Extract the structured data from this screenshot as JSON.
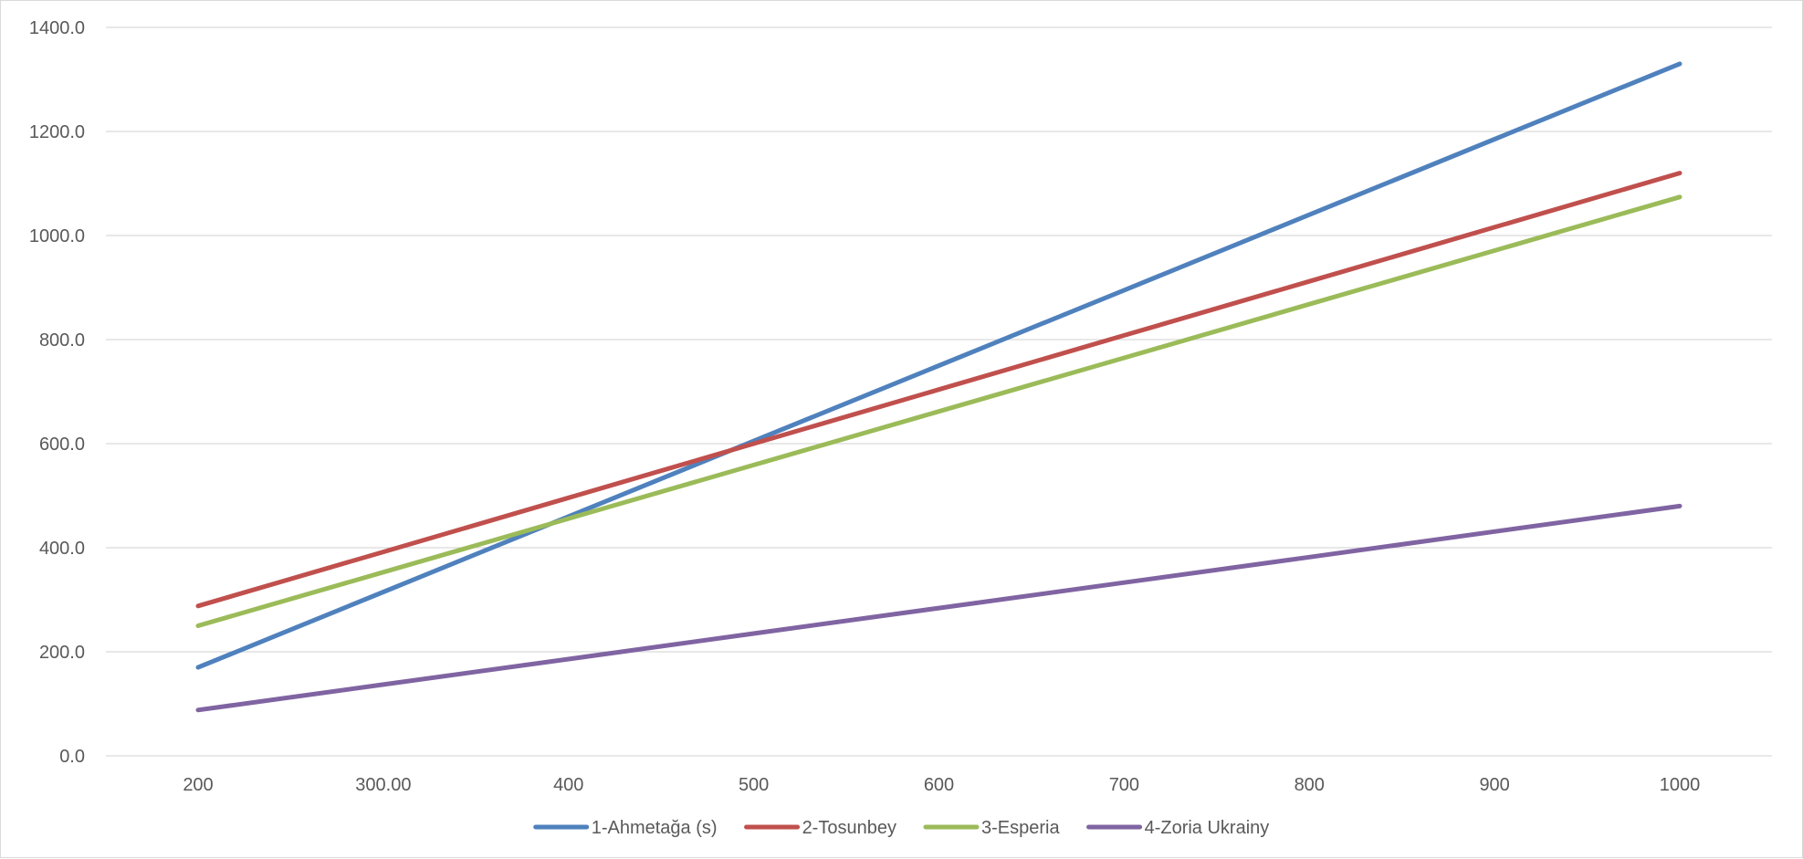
{
  "chart_data": {
    "type": "line",
    "categories": [
      "200",
      "300.00",
      "400",
      "500",
      "600",
      "700",
      "800",
      "900",
      "1000"
    ],
    "x": [
      200,
      300,
      400,
      500,
      600,
      700,
      800,
      900,
      1000
    ],
    "ylim": [
      0,
      1400
    ],
    "yticks": [
      "0.0",
      "200.0",
      "400.0",
      "600.0",
      "800.0",
      "1000.0",
      "1200.0",
      "1400.0"
    ],
    "grid": true,
    "legend_position": "bottom",
    "series": [
      {
        "name": "1-Ahmetağa (s)",
        "color": "#4f81bd",
        "values": [
          170,
          315,
          460,
          605,
          750,
          895,
          1040,
          1185,
          1330
        ]
      },
      {
        "name": "2-Tosunbey",
        "color": "#c0504d",
        "values": [
          288,
          392,
          496,
          600,
          704,
          808,
          912,
          1016,
          1120
        ]
      },
      {
        "name": "3-Esperia",
        "color": "#9bbb59",
        "values": [
          250,
          353,
          456,
          559,
          662,
          765,
          868,
          971,
          1074
        ]
      },
      {
        "name": "4-Zoria Ukrainy",
        "color": "#8064a2",
        "values": [
          88,
          137,
          186,
          235,
          284,
          333,
          382,
          431,
          480
        ]
      }
    ]
  }
}
